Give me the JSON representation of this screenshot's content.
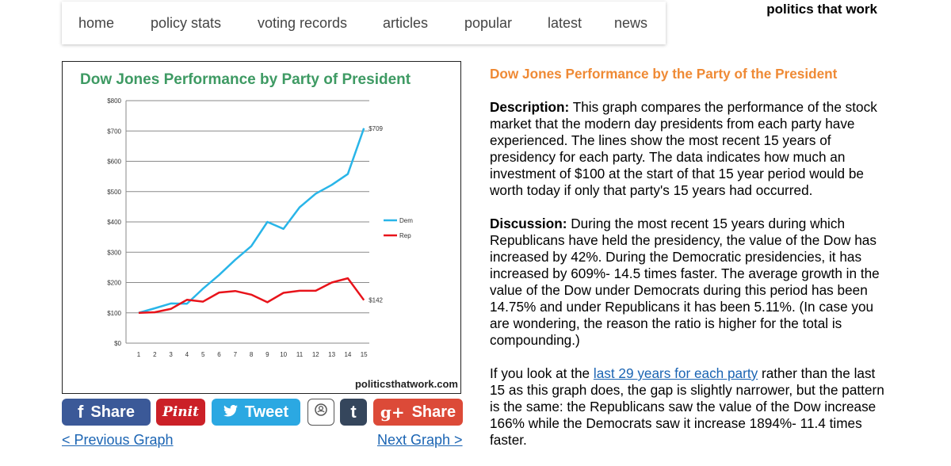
{
  "nav": {
    "items": [
      "home",
      "policy stats",
      "voting records",
      "articles",
      "popular",
      "latest",
      "news"
    ]
  },
  "brand": "politics that work",
  "chart_data": {
    "type": "line",
    "title": "Dow Jones Performance by Party of President",
    "xlabel": "",
    "ylabel": "",
    "categories": [
      "1",
      "2",
      "3",
      "4",
      "5",
      "6",
      "7",
      "8",
      "9",
      "10",
      "11",
      "12",
      "13",
      "14",
      "15"
    ],
    "y_ticks": [
      "$0",
      "$100",
      "$200",
      "$300",
      "$400",
      "$500",
      "$600",
      "$700",
      "$800"
    ],
    "ylim": [
      0,
      800
    ],
    "grid": true,
    "legend_position": "right",
    "series": [
      {
        "name": "Dem",
        "color": "#29b5e8",
        "values": [
          100,
          115,
          131,
          130,
          180,
          225,
          275,
          320,
          400,
          377,
          448,
          493,
          522,
          558,
          709
        ]
      },
      {
        "name": "Rep",
        "color": "#e8131a",
        "values": [
          100,
          102,
          113,
          143,
          137,
          167,
          172,
          160,
          135,
          166,
          173,
          173,
          200,
          214,
          142
        ]
      }
    ],
    "annotations": [
      "$709",
      "$142"
    ],
    "watermark": "politicsthatwork.com",
    "title_color": "#3e9a63"
  },
  "share": {
    "facebook": {
      "label": "Share",
      "icon": "f"
    },
    "pinterest": {
      "label": "Pinit"
    },
    "twitter": {
      "label": "Tweet"
    },
    "stumble": {},
    "tumblr": {
      "icon": "t"
    },
    "gplus": {
      "label": "Share",
      "icon": "g+"
    }
  },
  "pager": {
    "prev": "< Previous Graph",
    "next": "Next Graph >"
  },
  "article": {
    "title": "Dow Jones Performance by the Party of the President",
    "desc_label": "Description:",
    "desc_text": " This graph compares the performance of the stock market that the modern day presidents from each party have experienced. The lines show the most recent 15 years of presidency for each party. The data indicates how much an investment of $100 at the start of that 15 year period would be worth today if only that party's 15 years had occurred.",
    "disc_label": "Discussion:",
    "disc_text": " During the most recent 15 years during which Republicans have held the presidency, the value of the Dow has increased by 42%. During the Democratic presidencies, it has increased by 609%- 14.5 times faster. The average growth in the value of the Dow under Democrats during this period has been 14.75% and under Republicans it has been 5.11%. (In case you are wondering, the reason the ratio is higher for the total is compounding.)",
    "p3_pre": "If you look at the ",
    "p3_link": "last 29 years for each party",
    "p3_post": " rather than the last 15 as this graph does, the gap is slightly narrower, but the pattern is the same: the Republicans saw the value of the Dow increase 166% while the Democrats saw it increase 1894%- 11.4 times faster."
  }
}
